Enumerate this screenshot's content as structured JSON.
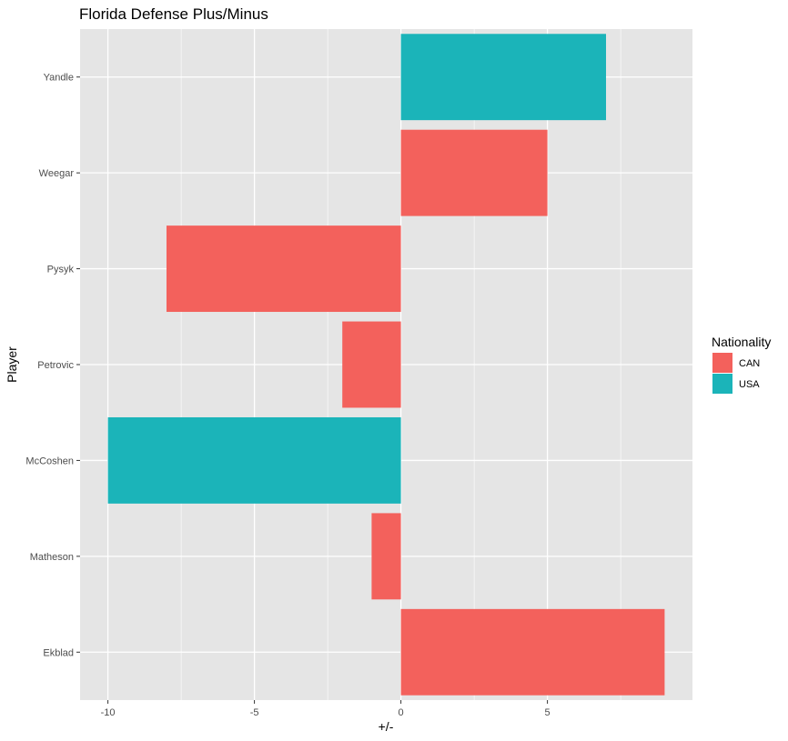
{
  "chart_data": {
    "type": "bar",
    "orientation": "horizontal",
    "title": "Florida Defense Plus/Minus",
    "xlabel": "+/-",
    "ylabel": "Player",
    "categories": [
      "Ekblad",
      "Matheson",
      "McCoshen",
      "Petrovic",
      "Pysyk",
      "Weegar",
      "Yandle"
    ],
    "values": [
      9,
      -1,
      -10,
      -2,
      -8,
      5,
      7
    ],
    "nationality": [
      "CAN",
      "CAN",
      "USA",
      "CAN",
      "CAN",
      "CAN",
      "USA"
    ],
    "xlim": [
      -10.95,
      9.95
    ],
    "xticks": [
      -10,
      -5,
      0,
      5
    ],
    "xtick_labels": [
      "-10",
      "-5",
      "0",
      "5"
    ],
    "grid": true,
    "legend": {
      "title": "Nationality",
      "position": "right",
      "entries": [
        {
          "label": "CAN",
          "color": "#F8766D"
        },
        {
          "label": "USA",
          "color": "#00BFC4"
        }
      ]
    },
    "colors": {
      "CAN": "#F3615C",
      "USA": "#1BB4B9",
      "panel": "#E5E5E5",
      "grid": "#FFFFFF"
    }
  }
}
